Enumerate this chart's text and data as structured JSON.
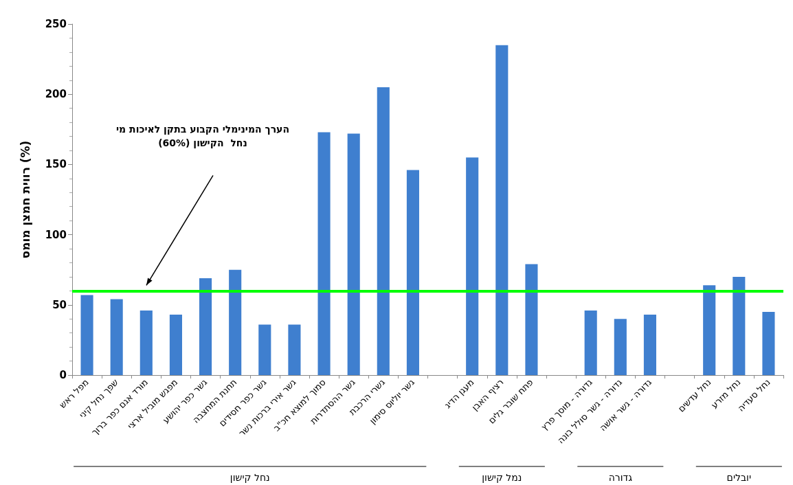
{
  "chart_data": {
    "type": "bar",
    "ylabel": "רווית חמצן מומס (%)",
    "categories": [
      "מפל ראש",
      "שפך נחל קיני",
      "מורד אגם כפר ברוך",
      "מפגש מוביל ארצי",
      "גשר כפר יהושע",
      "תחנת המחצבה",
      "גשר כפר חסידים",
      "גשר אירי ברכות נשר",
      "סמוך למוצא חכ\"ב",
      "גשר ההסתדרות",
      "גשרי הרכבת",
      "גשר יוליוס סימון",
      null,
      "מעגן הדיג",
      "רציף האבן",
      "פתח שובר גלים",
      null,
      "גדורה - מוסך פרץ",
      "גדורה - גשר סולל בונה",
      "גדורה - גשר אושה",
      null,
      "נחל עדשים",
      "נחל מזרע",
      "נחל סעדיה"
    ],
    "values": [
      57,
      54,
      46,
      43,
      69,
      75,
      36,
      36,
      173,
      172,
      205,
      146,
      null,
      155,
      235,
      79,
      null,
      46,
      40,
      43,
      null,
      64,
      70,
      45
    ],
    "color": "#3f7fcf",
    "ylim": [
      0,
      250
    ],
    "yticks": [
      0,
      50,
      100,
      150,
      200,
      250
    ],
    "grid": false,
    "ref_lines": [
      {
        "axis": "y",
        "value": 60,
        "color": "#00ff00"
      }
    ],
    "annotations": [
      "הערך המינימלי הקבוע בתקן לאיכות מי\nנחל  הקישון (60%)",
      "נחל קישון",
      "נמל קישון",
      "גדורה",
      "יובלים"
    ]
  }
}
